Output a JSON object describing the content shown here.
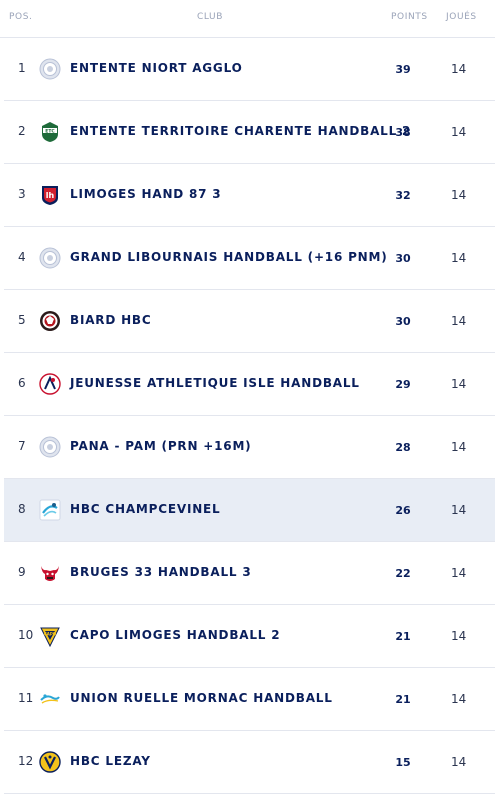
{
  "header": {
    "pos": "POS.",
    "club": "CLUB",
    "points": "POINTS",
    "played": "JOUÉS"
  },
  "rows": [
    {
      "pos": "1",
      "name": "ENTENTE NIORT AGGLO",
      "points": "39",
      "played": "14",
      "logo": "default-club-icon"
    },
    {
      "pos": "2",
      "name": "ENTENTE TERRITOIRE CHARENTE HANDBALL 2",
      "points": "38",
      "played": "14",
      "logo": "etc-club-icon"
    },
    {
      "pos": "3",
      "name": "LIMOGES HAND 87 3",
      "points": "32",
      "played": "14",
      "logo": "limoges-club-icon"
    },
    {
      "pos": "4",
      "name": "GRAND LIBOURNAIS HANDBALL (+16 PNM)",
      "points": "30",
      "played": "14",
      "logo": "default-club-icon"
    },
    {
      "pos": "5",
      "name": "BIARD HBC",
      "points": "30",
      "played": "14",
      "logo": "biard-club-icon"
    },
    {
      "pos": "6",
      "name": "JEUNESSE ATHLETIQUE ISLE HANDBALL",
      "points": "29",
      "played": "14",
      "logo": "isle-club-icon"
    },
    {
      "pos": "7",
      "name": "PANA - PAM (PRN +16M)",
      "points": "28",
      "played": "14",
      "logo": "default-club-icon"
    },
    {
      "pos": "8",
      "name": "HBC CHAMPCEVINEL",
      "points": "26",
      "played": "14",
      "logo": "champcevinel-club-icon",
      "highlight": true
    },
    {
      "pos": "9",
      "name": "BRUGES 33 HANDBALL 3",
      "points": "22",
      "played": "14",
      "logo": "bruges-club-icon"
    },
    {
      "pos": "10",
      "name": "CAPO LIMOGES HANDBALL 2",
      "points": "21",
      "played": "14",
      "logo": "capo-club-icon"
    },
    {
      "pos": "11",
      "name": "UNION RUELLE MORNAC HANDBALL",
      "points": "21",
      "played": "14",
      "logo": "ruelle-club-icon"
    },
    {
      "pos": "12",
      "name": "HBC LEZAY",
      "points": "15",
      "played": "14",
      "logo": "lezay-club-icon"
    }
  ]
}
